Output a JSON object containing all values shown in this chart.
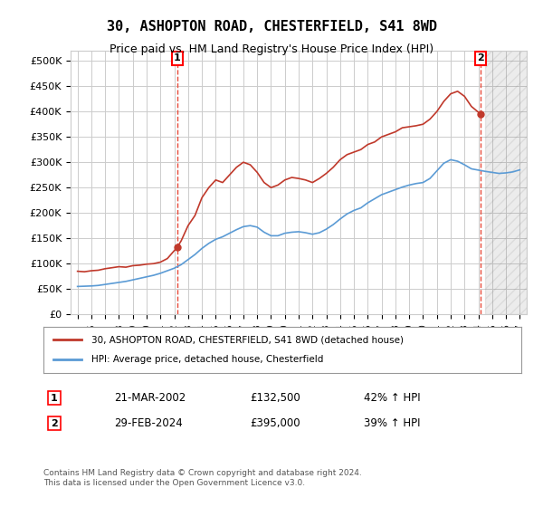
{
  "title": "30, ASHOPTON ROAD, CHESTERFIELD, S41 8WD",
  "subtitle": "Price paid vs. HM Land Registry's House Price Index (HPI)",
  "ylabel_ticks": [
    0,
    50000,
    100000,
    150000,
    200000,
    250000,
    300000,
    350000,
    400000,
    450000,
    500000
  ],
  "ylabel_labels": [
    "£0",
    "£50K",
    "£100K",
    "£150K",
    "£200K",
    "£250K",
    "£300K",
    "£350K",
    "£400K",
    "£450K",
    "£500K"
  ],
  "xmin": 1994.5,
  "xmax": 2027.5,
  "ymin": 0,
  "ymax": 520000,
  "vertical_line_1_x": 2002.22,
  "vertical_line_2_x": 2024.17,
  "label1_text": "1",
  "label2_text": "2",
  "hatch_start_x": 2024.5,
  "red_line_color": "#c0392b",
  "blue_line_color": "#5b9bd5",
  "vline_color": "#e74c3c",
  "hatch_color": "#d0d0d0",
  "grid_color": "#cccccc",
  "background_color": "#ffffff",
  "legend_line1": "30, ASHOPTON ROAD, CHESTERFIELD, S41 8WD (detached house)",
  "legend_line2": "HPI: Average price, detached house, Chesterfield",
  "table_row1_num": "1",
  "table_row1_date": "21-MAR-2002",
  "table_row1_price": "£132,500",
  "table_row1_hpi": "42% ↑ HPI",
  "table_row2_num": "2",
  "table_row2_date": "29-FEB-2024",
  "table_row2_price": "£395,000",
  "table_row2_hpi": "39% ↑ HPI",
  "footer": "Contains HM Land Registry data © Crown copyright and database right 2024.\nThis data is licensed under the Open Government Licence v3.0.",
  "red_x": [
    1995.0,
    1995.5,
    1996.0,
    1996.5,
    1997.0,
    1997.5,
    1998.0,
    1998.5,
    1999.0,
    1999.5,
    2000.0,
    2000.5,
    2001.0,
    2001.5,
    2002.22,
    2002.5,
    2003.0,
    2003.5,
    2004.0,
    2004.5,
    2005.0,
    2005.5,
    2006.0,
    2006.5,
    2007.0,
    2007.5,
    2008.0,
    2008.5,
    2009.0,
    2009.5,
    2010.0,
    2010.5,
    2011.0,
    2011.5,
    2012.0,
    2012.5,
    2013.0,
    2013.5,
    2014.0,
    2014.5,
    2015.0,
    2015.5,
    2016.0,
    2016.5,
    2017.0,
    2017.5,
    2018.0,
    2018.5,
    2019.0,
    2019.5,
    2020.0,
    2020.5,
    2021.0,
    2021.5,
    2022.0,
    2022.5,
    2023.0,
    2023.5,
    2024.17
  ],
  "red_y": [
    85000,
    84000,
    86000,
    87000,
    90000,
    92000,
    94000,
    93000,
    96000,
    97000,
    99000,
    100000,
    103000,
    110000,
    132500,
    145000,
    175000,
    195000,
    230000,
    250000,
    265000,
    260000,
    275000,
    290000,
    300000,
    295000,
    280000,
    260000,
    250000,
    255000,
    265000,
    270000,
    268000,
    265000,
    260000,
    268000,
    278000,
    290000,
    305000,
    315000,
    320000,
    325000,
    335000,
    340000,
    350000,
    355000,
    360000,
    368000,
    370000,
    372000,
    375000,
    385000,
    400000,
    420000,
    435000,
    440000,
    430000,
    410000,
    395000
  ],
  "blue_x": [
    1995.0,
    1995.5,
    1996.0,
    1996.5,
    1997.0,
    1997.5,
    1998.0,
    1998.5,
    1999.0,
    1999.5,
    2000.0,
    2000.5,
    2001.0,
    2001.5,
    2002.0,
    2002.5,
    2003.0,
    2003.5,
    2004.0,
    2004.5,
    2005.0,
    2005.5,
    2006.0,
    2006.5,
    2007.0,
    2007.5,
    2008.0,
    2008.5,
    2009.0,
    2009.5,
    2010.0,
    2010.5,
    2011.0,
    2011.5,
    2012.0,
    2012.5,
    2013.0,
    2013.5,
    2014.0,
    2014.5,
    2015.0,
    2015.5,
    2016.0,
    2016.5,
    2017.0,
    2017.5,
    2018.0,
    2018.5,
    2019.0,
    2019.5,
    2020.0,
    2020.5,
    2021.0,
    2021.5,
    2022.0,
    2022.5,
    2023.0,
    2023.5,
    2024.5,
    2025.0,
    2025.5,
    2026.0,
    2026.5,
    2027.0
  ],
  "blue_y": [
    55000,
    55500,
    56000,
    57000,
    59000,
    61000,
    63000,
    65000,
    68000,
    71000,
    74000,
    77000,
    81000,
    86000,
    91000,
    98000,
    108000,
    118000,
    130000,
    140000,
    148000,
    153000,
    160000,
    167000,
    173000,
    175000,
    172000,
    162000,
    155000,
    155000,
    160000,
    162000,
    163000,
    161000,
    158000,
    161000,
    168000,
    177000,
    188000,
    198000,
    205000,
    210000,
    220000,
    228000,
    236000,
    241000,
    246000,
    251000,
    255000,
    258000,
    260000,
    268000,
    283000,
    298000,
    305000,
    302000,
    295000,
    287000,
    282000,
    280000,
    278000,
    279000,
    281000,
    285000
  ]
}
